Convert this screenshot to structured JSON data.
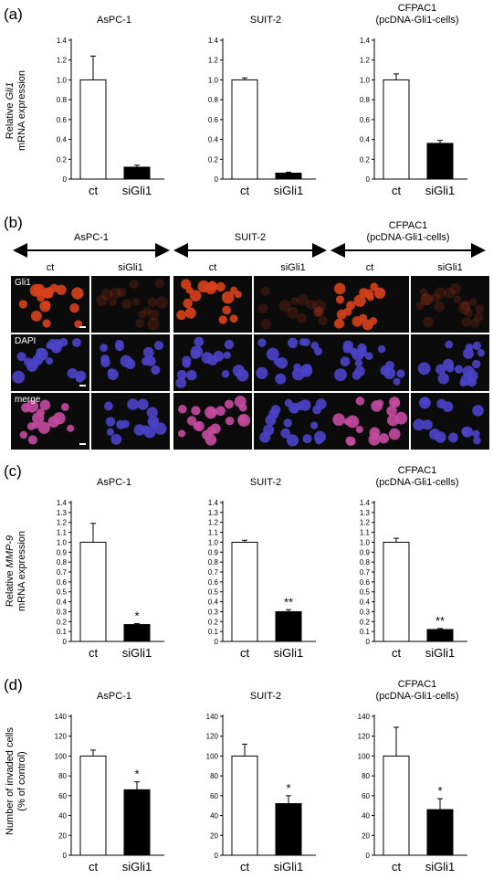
{
  "panels": {
    "a": {
      "label": "(a)",
      "ylabel_prefix": "Relative ",
      "ylabel_gene": "Gli1",
      "ylabel_line2": "mRNA expression"
    },
    "b": {
      "label": "(b)"
    },
    "c": {
      "label": "(c)",
      "ylabel_prefix": "Relative ",
      "ylabel_gene": "MMP-9",
      "ylabel_line2": "mRNA expression"
    },
    "d": {
      "label": "(d)",
      "ylabel_line1": "Number of invaded cells",
      "ylabel_line2": "(% of control)"
    }
  },
  "micrograph": {
    "group_titles": [
      "AsPC-1",
      "SUIT-2",
      "CFPAC1"
    ],
    "group_subtitle_3": "(pcDNA-Gli1-cells)",
    "column_labels": [
      "ct",
      "siGli1",
      "ct",
      "siGli1",
      "ct",
      "siGli1"
    ],
    "row_labels": [
      "Gli1",
      "DAPI",
      "merge"
    ]
  },
  "colors": {
    "ct_bar": "#ffffff",
    "siGli1_bar": "#000000",
    "gli1_stain": "#d8401c",
    "dapi_stain": "#4a43c8",
    "merge_stain": "#c44aa0"
  },
  "chart_data": [
    {
      "panel": "a",
      "type": "bar",
      "title": "AsPC-1",
      "categories": [
        "ct",
        "siGli1"
      ],
      "values": [
        1.0,
        0.12
      ],
      "errors": [
        0.24,
        0.02
      ],
      "ylim": [
        0,
        1.4
      ],
      "yticks": [
        "0",
        "0.2",
        "0.4",
        "0.6",
        "0.8",
        "1.0",
        "1.2",
        "1.4"
      ],
      "significance": [
        "",
        ""
      ]
    },
    {
      "panel": "a",
      "type": "bar",
      "title": "SUIT-2",
      "categories": [
        "ct",
        "siGli1"
      ],
      "values": [
        1.0,
        0.06
      ],
      "errors": [
        0.02,
        0.01
      ],
      "ylim": [
        0,
        1.4
      ],
      "yticks": [
        "0",
        "0.2",
        "0.4",
        "0.6",
        "0.8",
        "1.0",
        "1.2",
        "1.4"
      ],
      "significance": [
        "",
        ""
      ]
    },
    {
      "panel": "a",
      "type": "bar",
      "title": "CFPAC1",
      "subtitle": "(pcDNA-Gli1-cells)",
      "categories": [
        "ct",
        "siGli1"
      ],
      "values": [
        1.0,
        0.36
      ],
      "errors": [
        0.06,
        0.03
      ],
      "ylim": [
        0,
        1.4
      ],
      "yticks": [
        "0",
        "0.2",
        "0.4",
        "0.6",
        "0.8",
        "1.0",
        "1.2",
        "1.4"
      ],
      "significance": [
        "",
        ""
      ]
    },
    {
      "panel": "c",
      "type": "bar",
      "title": "AsPC-1",
      "categories": [
        "ct",
        "siGli1"
      ],
      "values": [
        1.0,
        0.17
      ],
      "errors": [
        0.19,
        0.01
      ],
      "ylim": [
        0,
        1.4
      ],
      "yticks": [
        "0",
        "0.1",
        "0.2",
        "0.3",
        "0.4",
        "0.5",
        "0.6",
        "0.7",
        "0.8",
        "0.9",
        "1.0",
        "1.1",
        "1.2",
        "1.3",
        "1.4"
      ],
      "significance": [
        "",
        "*"
      ]
    },
    {
      "panel": "c",
      "type": "bar",
      "title": "SUIT-2",
      "categories": [
        "ct",
        "siGli1"
      ],
      "values": [
        1.0,
        0.3
      ],
      "errors": [
        0.02,
        0.02
      ],
      "ylim": [
        0,
        1.4
      ],
      "yticks": [
        "0",
        "0.1",
        "0.2",
        "0.3",
        "0.4",
        "0.5",
        "0.6",
        "0.7",
        "0.8",
        "0.9",
        "1.0",
        "1.1",
        "1.2",
        "1.3",
        "1.4"
      ],
      "significance": [
        "",
        "**"
      ]
    },
    {
      "panel": "c",
      "type": "bar",
      "title": "CFPAC1",
      "subtitle": "(pcDNA-Gli1-cells)",
      "categories": [
        "ct",
        "siGli1"
      ],
      "values": [
        1.0,
        0.12
      ],
      "errors": [
        0.04,
        0.01
      ],
      "ylim": [
        0,
        1.4
      ],
      "yticks": [
        "0",
        "0.1",
        "0.2",
        "0.3",
        "0.4",
        "0.5",
        "0.6",
        "0.7",
        "0.8",
        "0.9",
        "1.0",
        "1.1",
        "1.2",
        "1.3",
        "1.4"
      ],
      "significance": [
        "",
        "**"
      ]
    },
    {
      "panel": "d",
      "type": "bar",
      "title": "AsPC-1",
      "categories": [
        "ct",
        "siGli1"
      ],
      "values": [
        100,
        66
      ],
      "errors": [
        6,
        8
      ],
      "ylim": [
        0,
        140
      ],
      "yticks": [
        "0",
        "20",
        "40",
        "60",
        "80",
        "100",
        "120",
        "140"
      ],
      "significance": [
        "",
        "*"
      ]
    },
    {
      "panel": "d",
      "type": "bar",
      "title": "SUIT-2",
      "categories": [
        "ct",
        "siGli1"
      ],
      "values": [
        100,
        52
      ],
      "errors": [
        12,
        8
      ],
      "ylim": [
        0,
        140
      ],
      "yticks": [
        "0",
        "20",
        "40",
        "60",
        "80",
        "100",
        "120",
        "140"
      ],
      "significance": [
        "",
        "*"
      ]
    },
    {
      "panel": "d",
      "type": "bar",
      "title": "CFPAC1",
      "subtitle": "(pcDNA-Gli1-cells)",
      "categories": [
        "ct",
        "siGli1"
      ],
      "values": [
        100,
        46
      ],
      "errors": [
        29,
        11
      ],
      "ylim": [
        0,
        140
      ],
      "yticks": [
        "0",
        "20",
        "40",
        "60",
        "80",
        "100",
        "120",
        "140"
      ],
      "significance": [
        "",
        "*"
      ]
    }
  ]
}
